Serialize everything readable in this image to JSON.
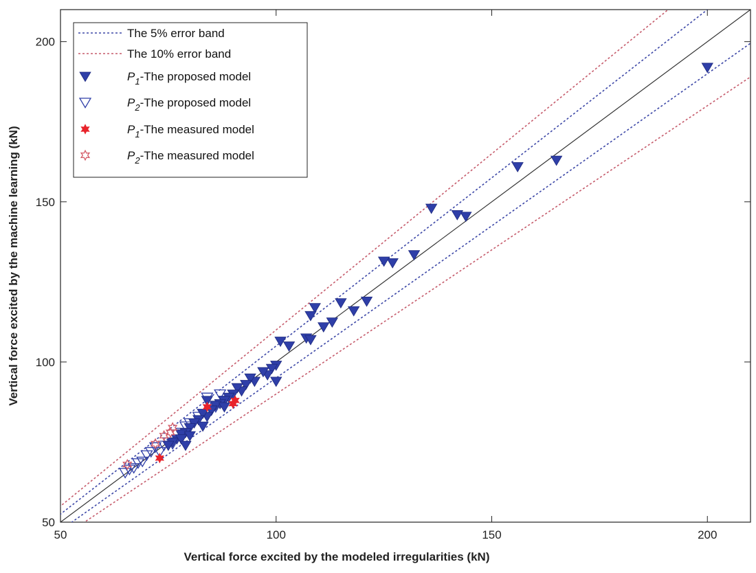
{
  "chart_data": {
    "type": "scatter",
    "title": "",
    "xlabel": "Vertical force excited by the modeled irregularities (kN)",
    "ylabel": "Vertical force excited by the machine learning (kN)",
    "xlim": [
      50,
      210
    ],
    "ylim": [
      50,
      210
    ],
    "xticks": [
      50,
      100,
      150,
      200
    ],
    "yticks": [
      50,
      100,
      150,
      200
    ],
    "legend_position": "top-left",
    "colors": {
      "band5": "#3b46a6",
      "band10": "#c55a6a",
      "identity": "#333333",
      "p1_proposed": "#2f3fa8",
      "p2_proposed": "#2f3fa8",
      "p1_measured": "#e8232a",
      "p2_measured": "#d45a66"
    },
    "reference_lines": [
      {
        "name": "The 5% error band",
        "style": "dotted",
        "slopes": [
          1.05,
          0.95
        ],
        "color": "#3b46a6"
      },
      {
        "name": "The 10% error band",
        "style": "dotted",
        "slopes": [
          1.1,
          0.9
        ],
        "color": "#c55a6a"
      },
      {
        "name": "identity",
        "style": "solid",
        "slopes": [
          1.0
        ],
        "color": "#333333"
      }
    ],
    "legend": [
      {
        "key": "band5",
        "sub": "",
        "label": "The 5% error band",
        "marker": "line",
        "color": "#3b46a6"
      },
      {
        "key": "band10",
        "sub": "",
        "label": "The 10% error band",
        "marker": "line",
        "color": "#c55a6a"
      },
      {
        "key": "P",
        "sub": "1",
        "label": "-The proposed model",
        "marker": "tri-filled",
        "color": "#2f3fa8"
      },
      {
        "key": "P",
        "sub": "2",
        "label": "-The proposed model",
        "marker": "tri-open",
        "color": "#2f3fa8"
      },
      {
        "key": "P",
        "sub": "1",
        "label": "-The measured model",
        "marker": "hex-filled",
        "color": "#e8232a"
      },
      {
        "key": "P",
        "sub": "2",
        "label": "-The measured model",
        "marker": "hex-open",
        "color": "#d45a66"
      }
    ],
    "series": [
      {
        "name": "P1-The proposed model",
        "marker": "tri-filled",
        "x": [
          200,
          165,
          156,
          144,
          142,
          136,
          132,
          127,
          125,
          121,
          118,
          115,
          113,
          111,
          109,
          108,
          107,
          108,
          103,
          101,
          100,
          100,
          99,
          98,
          97,
          95,
          94,
          93,
          92,
          91,
          90,
          89,
          88,
          87,
          86,
          85,
          84,
          83,
          82,
          81,
          80,
          79,
          78,
          77,
          76,
          88,
          84,
          83,
          80,
          78,
          79,
          75
        ],
        "y": [
          192,
          163,
          161,
          145.5,
          146,
          148,
          133.5,
          131,
          131.5,
          119,
          116,
          118.5,
          112.5,
          111,
          117,
          114.5,
          107.5,
          107,
          105,
          106.5,
          94,
          99,
          98,
          96,
          97,
          94,
          95,
          93,
          91,
          92,
          90,
          89,
          88,
          87,
          86.5,
          85,
          83,
          84,
          82,
          81,
          79.5,
          78,
          77.5,
          76,
          75,
          86,
          88,
          80,
          77,
          76,
          74,
          74
        ]
      },
      {
        "name": "P2-The proposed model",
        "marker": "tri-open",
        "x": [
          65,
          66,
          67,
          68,
          69,
          70,
          71,
          72,
          73,
          74,
          75,
          76,
          77,
          78,
          79,
          80,
          82,
          84,
          85,
          86,
          87,
          88
        ],
        "y": [
          65.5,
          66.5,
          67,
          68.5,
          69,
          71,
          72,
          73.5,
          72,
          74,
          75,
          74.5,
          77.5,
          78,
          80,
          81,
          83,
          89,
          85,
          86,
          90,
          88
        ]
      },
      {
        "name": "P1-The measured model",
        "marker": "hex-filled",
        "x": [
          73,
          84,
          90,
          90.5
        ],
        "y": [
          70,
          86,
          87,
          88
        ]
      },
      {
        "name": "P2-The measured model",
        "marker": "hex-open",
        "x": [
          65.5,
          72,
          74,
          75.5,
          76
        ],
        "y": [
          68,
          74.5,
          77,
          78,
          79.5
        ]
      }
    ]
  }
}
